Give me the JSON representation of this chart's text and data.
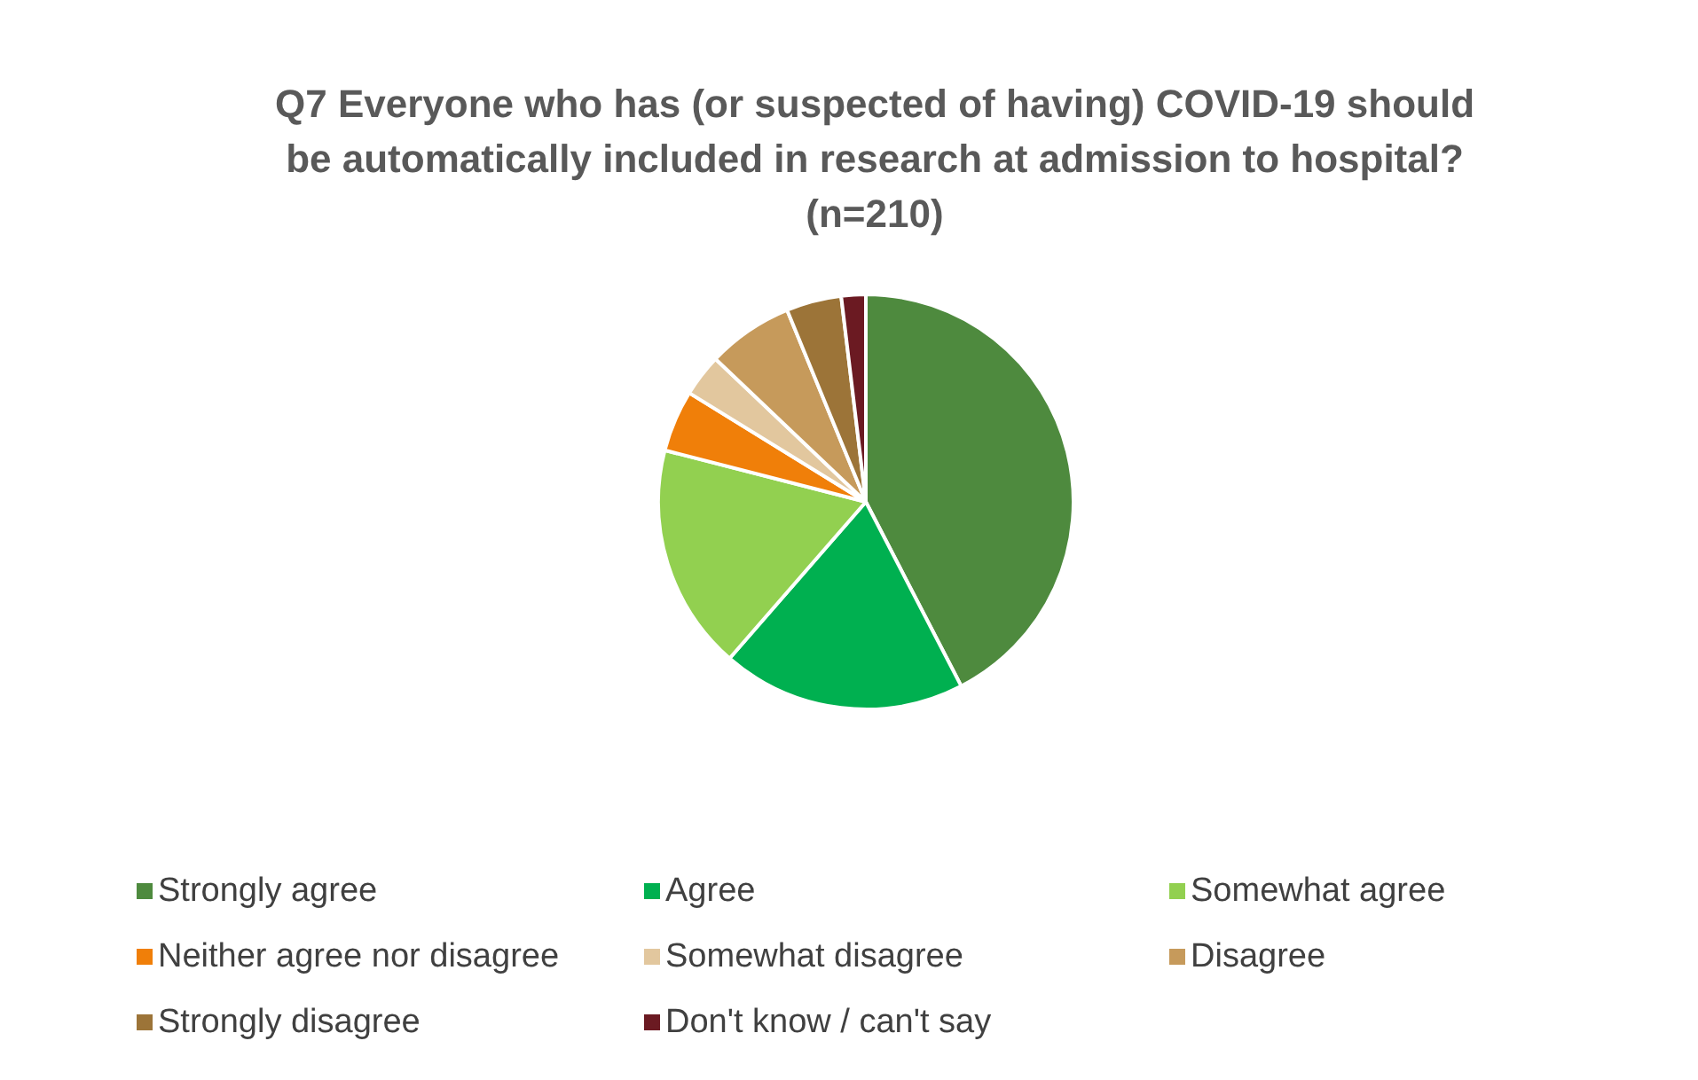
{
  "chart_data": {
    "type": "pie",
    "title": "Q7 Everyone who has (or suspected of having) COVID-19 should\nbe automatically included in research at admission to hospital?\n(n=210)",
    "categories": [
      "Strongly agree",
      "Agree",
      "Somewhat agree",
      "Neither agree nor disagree",
      "Somewhat disagree",
      "Disagree",
      "Strongly disagree",
      "Don't know / can't say"
    ],
    "values": [
      42.4,
      19.0,
      17.6,
      4.8,
      3.3,
      6.7,
      4.3,
      1.9
    ],
    "colors": [
      "#4e8a3e",
      "#00b050",
      "#92d050",
      "#f07f09",
      "#e2c79e",
      "#c69a5b",
      "#9c7438",
      "#6b1a22"
    ],
    "legend": "bottom"
  }
}
